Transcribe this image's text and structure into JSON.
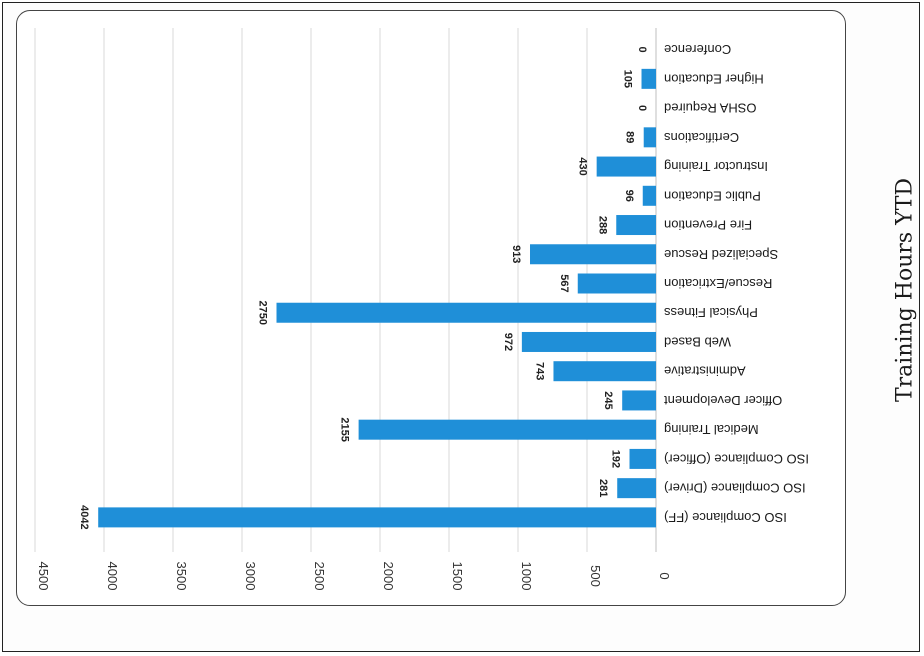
{
  "chart_data": {
    "type": "bar",
    "orientation": "horizontal",
    "title": "Training Hours YTD",
    "xlabel": "",
    "ylabel": "",
    "categories": [
      "ISO Compliance (FF)",
      "ISO Compliance (Driver)",
      "ISO Compliance (Officer)",
      "Medical Training",
      "Officer Development",
      "Administrative",
      "Web Based",
      "Physical Fitness",
      "Rescue/Extrication",
      "Specialized Rescue",
      "Fire Prevention",
      "Public Education",
      "Instructor Training",
      "Certifications",
      "OSHA Required",
      "Higher Education",
      "Conference"
    ],
    "values": [
      4042,
      281,
      192,
      2155,
      245,
      743,
      972,
      2750,
      567,
      913,
      288,
      96,
      430,
      89,
      0,
      105,
      0
    ],
    "ylim": [
      0,
      4500
    ],
    "ticks": [
      0,
      500,
      1000,
      1500,
      2000,
      2500,
      3000,
      3500,
      4000,
      4500
    ],
    "grid": true,
    "legend": "none",
    "data_labels": true,
    "bar_color": "#1f8fd8",
    "grid_color": "#d9d9d9"
  }
}
